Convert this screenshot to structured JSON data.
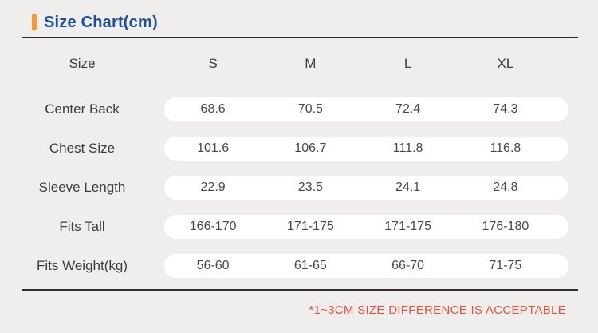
{
  "page": {
    "background_color": "#efeeec"
  },
  "header": {
    "title": "Size Chart(cm)",
    "title_color": "#1d4f9e",
    "accent_color": "#f59a2f"
  },
  "table": {
    "columns": [
      "Size",
      "S",
      "M",
      "L",
      "XL"
    ],
    "rows": [
      {
        "label": "Center Back",
        "values": [
          "68.6",
          "70.5",
          "72.4",
          "74.3"
        ]
      },
      {
        "label": "Chest Size",
        "values": [
          "101.6",
          "106.7",
          "111.8",
          "116.8"
        ]
      },
      {
        "label": "Sleeve Length",
        "values": [
          "22.9",
          "23.5",
          "24.1",
          "24.8"
        ]
      },
      {
        "label": "Fits Tall",
        "values": [
          "166-170",
          "171-175",
          "171-175",
          "176-180"
        ]
      },
      {
        "label": "Fits Weight(kg)",
        "values": [
          "56-60",
          "61-65",
          "66-70",
          "71-75"
        ]
      }
    ]
  },
  "footer": {
    "note": "*1~3CM SIZE DIFFERENCE IS ACCEPTABLE",
    "note_color": "#e2553d"
  }
}
